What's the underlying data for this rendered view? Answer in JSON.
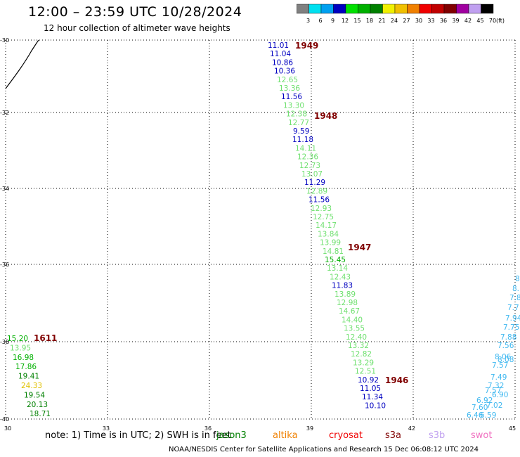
{
  "header": {
    "title": "12:00 – 23:59 UTC 10/28/2024",
    "subtitle": "12 hour collection of altimeter wave heights"
  },
  "legend": {
    "unit": "(ft)",
    "bins": [
      {
        "label": "3",
        "color": "#808080"
      },
      {
        "label": "6",
        "color": "#00e0f0"
      },
      {
        "label": "9",
        "color": "#00a0f0"
      },
      {
        "label": "12",
        "color": "#0000c0"
      },
      {
        "label": "15",
        "color": "#00e000"
      },
      {
        "label": "18",
        "color": "#00b000"
      },
      {
        "label": "21",
        "color": "#008000"
      },
      {
        "label": "24",
        "color": "#f0f000"
      },
      {
        "label": "27",
        "color": "#f0c000"
      },
      {
        "label": "30",
        "color": "#f08000"
      },
      {
        "label": "33",
        "color": "#f00000"
      },
      {
        "label": "36",
        "color": "#c00000"
      },
      {
        "label": "39",
        "color": "#800000"
      },
      {
        "label": "42",
        "color": "#a000a0"
      },
      {
        "label": "45",
        "color": "#c0a0f0"
      },
      {
        "label": "70",
        "color": "#000000"
      }
    ]
  },
  "axes": {
    "x_ticks": [
      "30",
      "33",
      "36",
      "39",
      "42",
      "45"
    ],
    "y_ticks": [
      "-30",
      "-32",
      "-34",
      "-36",
      "-38",
      "-40"
    ]
  },
  "passes": [
    {
      "label": "1949"
    },
    {
      "label": "1948"
    },
    {
      "label": "1947"
    },
    {
      "label": "1946"
    },
    {
      "label": "1611"
    }
  ],
  "colors": {
    "blue": "#0000c0",
    "light_green": "#70e070",
    "green": "#00b000",
    "dark_green": "#008000",
    "yellow": "#e0c000",
    "cyan": "#00a0e0",
    "pink": "#f070c0",
    "light_blue": "#40b8f0"
  },
  "tracks": {
    "main": [
      {
        "v": "11.01",
        "c": "blue"
      },
      {
        "v": "11.04",
        "c": "blue"
      },
      {
        "v": "10.86",
        "c": "blue"
      },
      {
        "v": "10.36",
        "c": "blue"
      },
      {
        "v": "12.65",
        "c": "light_green"
      },
      {
        "v": "13.36",
        "c": "light_green"
      },
      {
        "v": "11.56",
        "c": "blue"
      },
      {
        "v": "13.30",
        "c": "light_green"
      },
      {
        "v": "12.38",
        "c": "light_green"
      },
      {
        "v": "12.77",
        "c": "light_green"
      },
      {
        "v": "9.59",
        "c": "blue"
      },
      {
        "v": "11.18",
        "c": "blue"
      },
      {
        "v": "14.11",
        "c": "light_green"
      },
      {
        "v": "12.36",
        "c": "light_green"
      },
      {
        "v": "12.73",
        "c": "light_green"
      },
      {
        "v": "13.07",
        "c": "light_green"
      },
      {
        "v": "11.29",
        "c": "blue"
      },
      {
        "v": "12.89",
        "c": "light_green"
      },
      {
        "v": "11.56",
        "c": "blue"
      },
      {
        "v": "12.93",
        "c": "light_green"
      },
      {
        "v": "12.75",
        "c": "light_green"
      },
      {
        "v": "14.17",
        "c": "light_green"
      },
      {
        "v": "13.84",
        "c": "light_green"
      },
      {
        "v": "13.99",
        "c": "light_green"
      },
      {
        "v": "14.81",
        "c": "light_green"
      },
      {
        "v": "15.45",
        "c": "green"
      },
      {
        "v": "13.14",
        "c": "light_green"
      },
      {
        "v": "12.43",
        "c": "light_green"
      },
      {
        "v": "11.83",
        "c": "blue"
      },
      {
        "v": "13.89",
        "c": "light_green"
      },
      {
        "v": "12.98",
        "c": "light_green"
      },
      {
        "v": "14.67",
        "c": "light_green"
      },
      {
        "v": "14.40",
        "c": "light_green"
      },
      {
        "v": "13.55",
        "c": "light_green"
      },
      {
        "v": "12.40",
        "c": "light_green"
      },
      {
        "v": "13.32",
        "c": "light_green"
      },
      {
        "v": "12.82",
        "c": "light_green"
      },
      {
        "v": "13.29",
        "c": "light_green"
      },
      {
        "v": "12.51",
        "c": "light_green"
      },
      {
        "v": "10.92",
        "c": "blue"
      },
      {
        "v": "11.05",
        "c": "blue"
      },
      {
        "v": "11.34",
        "c": "blue"
      },
      {
        "v": "10.10",
        "c": "blue"
      }
    ],
    "left": [
      {
        "v": "15.20",
        "c": "green"
      },
      {
        "v": "13.95",
        "c": "light_green"
      },
      {
        "v": "16.98",
        "c": "green"
      },
      {
        "v": "17.86",
        "c": "green"
      },
      {
        "v": "19.41",
        "c": "dark_green"
      },
      {
        "v": "24.33",
        "c": "yellow"
      },
      {
        "v": "19.54",
        "c": "dark_green"
      },
      {
        "v": "20.13",
        "c": "dark_green"
      },
      {
        "v": "18.71",
        "c": "dark_green"
      }
    ],
    "right": [
      {
        "v": "8"
      },
      {
        "v": "8."
      },
      {
        "v": "7.8"
      },
      {
        "v": "7.7"
      },
      {
        "v": "7.94"
      },
      {
        "v": "7.75"
      },
      {
        "v": "7.88"
      },
      {
        "v": "7.56"
      },
      {
        "v": "8.06"
      },
      {
        "v": "8.08"
      },
      {
        "v": "7.57"
      },
      {
        "v": "7.49"
      },
      {
        "v": "7.32"
      },
      {
        "v": "7.57"
      },
      {
        "v": "6.90"
      },
      {
        "v": "6.92"
      },
      {
        "v": "7.02"
      },
      {
        "v": "7.60"
      },
      {
        "v": "6.46"
      },
      {
        "v": "6.59"
      }
    ]
  },
  "footer": {
    "note": "note:  1) Time is in UTC;  2) SWH is in feet",
    "satellites": [
      {
        "name": "jason3",
        "color": "#008000"
      },
      {
        "name": "altika",
        "color": "#f08000"
      },
      {
        "name": "cryosat",
        "color": "#f00000"
      },
      {
        "name": "s3a",
        "color": "#800000"
      },
      {
        "name": "s3b",
        "color": "#c0a0f0"
      },
      {
        "name": "swot",
        "color": "#f070c0"
      }
    ],
    "credit": "NOAA/NESDIS Center for Satellite Applications and Research    15 Dec 06:08:12 UTC 2024"
  }
}
